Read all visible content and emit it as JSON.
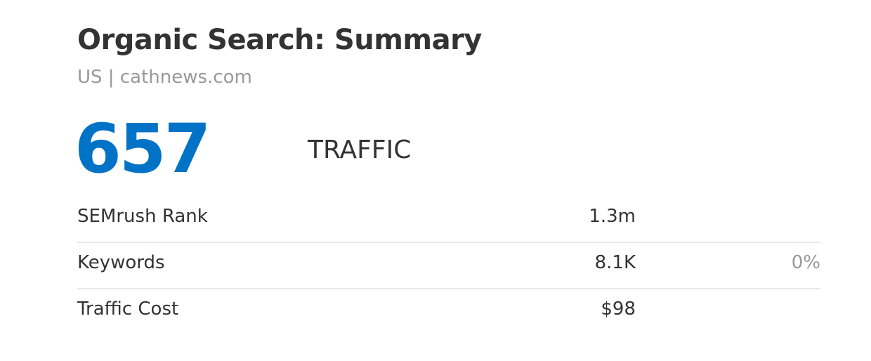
{
  "header": {
    "title": "Organic Search: Summary",
    "subtitle": "US | cathnews.com"
  },
  "highlight": {
    "value": "657",
    "label": "TRAFFIC",
    "color": "#0073c6"
  },
  "rows": [
    {
      "label": "SEMrush Rank",
      "value": "1.3m",
      "change": ""
    },
    {
      "label": "Keywords",
      "value": "8.1K",
      "change": "0%"
    },
    {
      "label": "Traffic Cost",
      "value": "$98",
      "change": ""
    }
  ]
}
